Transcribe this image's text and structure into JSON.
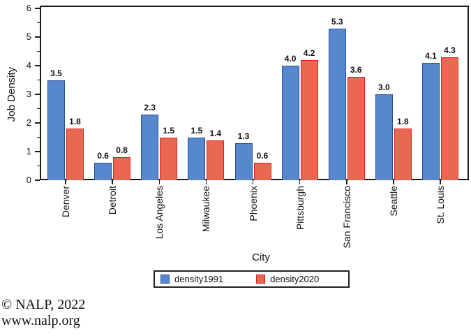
{
  "chart_data": {
    "type": "bar",
    "title": "",
    "xlabel": "City",
    "ylabel": "Job Density",
    "categories": [
      "Denver",
      "Detroit",
      "Los Angeles",
      "Milwaukee",
      "Phoenix",
      "Pittsburgh",
      "San Francisco",
      "Seattle",
      "St. Louis"
    ],
    "series": [
      {
        "name": "density1991",
        "fill": "#5787cd",
        "border": "#24509c",
        "values": [
          3.5,
          0.6,
          2.3,
          1.5,
          1.3,
          4.0,
          5.3,
          3.0,
          4.1
        ]
      },
      {
        "name": "density2020",
        "fill": "#e96852",
        "border": "#df2020",
        "values": [
          1.8,
          0.8,
          1.5,
          1.4,
          0.6,
          4.2,
          3.6,
          1.8,
          4.3
        ]
      }
    ],
    "ylim": [
      0,
      6
    ],
    "y_major_tick_step": 1,
    "y_minor_tick_step": 0.5,
    "y_major_tick_labels": [
      "0",
      "1",
      "2",
      "3",
      "4",
      "5",
      "6"
    ],
    "grid": false,
    "legend_position": "bottom-center",
    "bar_value_labels": true,
    "value_label_decimals": 1,
    "axis_color": "#1a1a1a"
  },
  "footer": {
    "line1": "© NALP, 2022",
    "line2": "www.nalp.org"
  }
}
